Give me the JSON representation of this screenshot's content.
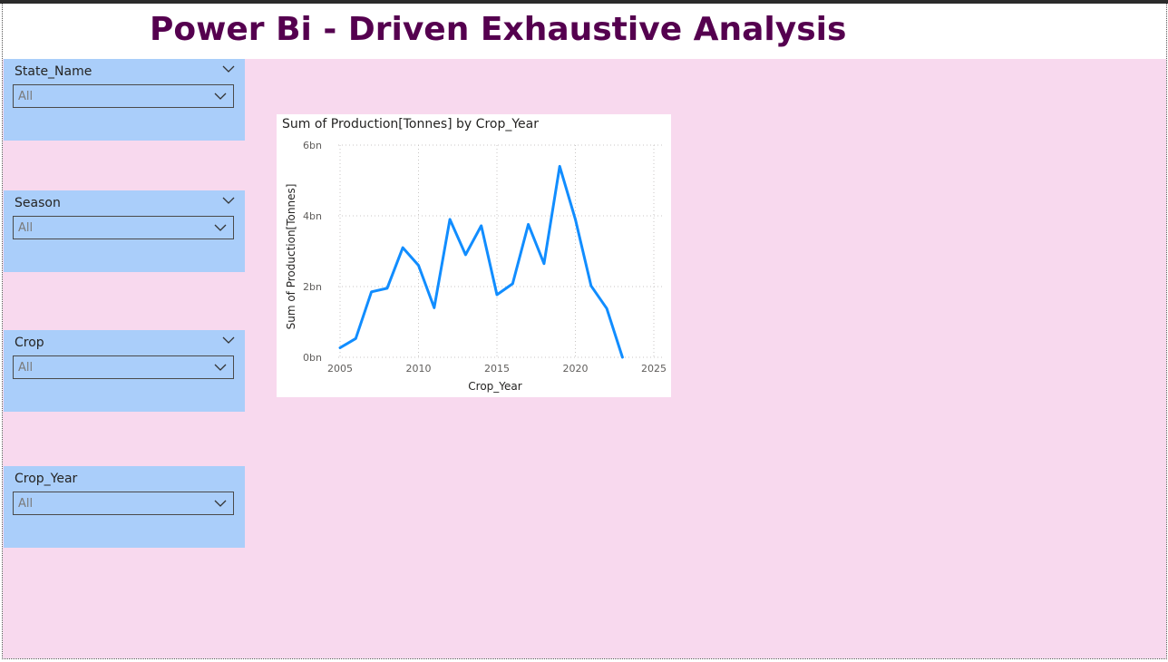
{
  "page": {
    "title": "Power Bi - Driven Exhaustive Analysis",
    "title_color": "#55004f",
    "background_color": "#f8d9ee",
    "slicer_color": "#aacefa"
  },
  "slicers": [
    {
      "label": "State_Name",
      "value": "All",
      "has_collapse": true
    },
    {
      "label": "Season",
      "value": "All",
      "has_collapse": true
    },
    {
      "label": "Crop",
      "value": "All",
      "has_collapse": true
    },
    {
      "label": "Crop_Year",
      "value": "All",
      "has_collapse": false
    }
  ],
  "chart": {
    "title": "Sum of Production[Tonnes] by Crop_Year",
    "line_color": "#118dff"
  },
  "chart_data": {
    "type": "line",
    "title": "Sum of Production[Tonnes] by Crop_Year",
    "xlabel": "Crop_Year",
    "ylabel": "Sum of Production[Tonnes]",
    "xlim": [
      2005,
      2025
    ],
    "ylim": [
      0,
      6
    ],
    "x_ticks": [
      2005,
      2010,
      2015,
      2020,
      2025
    ],
    "y_ticks": [
      0,
      2,
      4,
      6
    ],
    "y_tick_labels": [
      "0bn",
      "2bn",
      "4bn",
      "6bn"
    ],
    "grid": true,
    "series": [
      {
        "x": [
          2005,
          2006,
          2007,
          2008,
          2009,
          2010,
          2011,
          2012,
          2013,
          2014,
          2015,
          2016,
          2017,
          2018,
          2019,
          2020,
          2021,
          2022,
          2023
        ],
        "y": [
          0.27,
          0.53,
          1.85,
          1.95,
          3.1,
          2.6,
          1.4,
          3.9,
          2.9,
          3.72,
          1.77,
          2.08,
          3.76,
          2.65,
          5.4,
          3.9,
          2.02,
          1.38,
          0.0
        ]
      }
    ]
  }
}
